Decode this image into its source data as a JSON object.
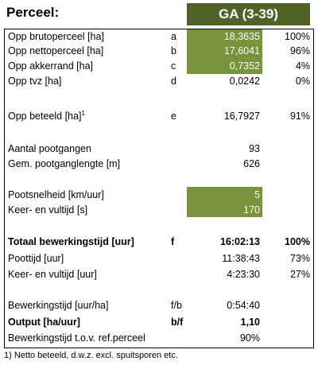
{
  "header": {
    "title": "Perceel:",
    "field": "GA (3-39)"
  },
  "rows": [
    {
      "label": "Opp brutoperceel [ha]",
      "code": "a",
      "value": "18,3635",
      "percent": "100%"
    },
    {
      "label": "Opp nettoperceel [ha]",
      "code": "b",
      "value": "17,6041",
      "percent": "96%"
    },
    {
      "label": "Opp akkerrand [ha]",
      "code": "c",
      "value": "0,7352",
      "percent": "4%"
    },
    {
      "label": "Opp tvz [ha]",
      "code": "d",
      "value": "0,0242",
      "percent": "0%"
    },
    {
      "label": "Opp beteeld [ha]",
      "sup": "1",
      "code": "e",
      "value": "16,7927",
      "percent": "91%"
    },
    {
      "label": "Aantal pootgangen",
      "value": "93"
    },
    {
      "label": "Gem. pootganglengte [m]",
      "value": "626"
    },
    {
      "label": "Pootsnelheid [km/uur]",
      "value": "5"
    },
    {
      "label": "Keer- en vultijd [s]",
      "value": "170"
    },
    {
      "label": "Totaal bewerkingstijd [uur]",
      "code": "f",
      "value": "16:02:13",
      "percent": "100%"
    },
    {
      "label": "Poottijd [uur]",
      "value": "11:38:43",
      "percent": "73%"
    },
    {
      "label": "Keer- en vultijd [uur]",
      "value": "4:23:30",
      "percent": "27%"
    },
    {
      "label": "Bewerkingstijd [uur/ha]",
      "code": "f/b",
      "value": "0:54:40"
    },
    {
      "label": "Output [ha/uur]",
      "code": "b/f",
      "value": "1,10"
    },
    {
      "label": "Bewerkingstijd t.o.v. ref.perceel",
      "value": "90%"
    }
  ],
  "footnote": "1) Netto beteeld, d.w.z. excl. spuitsporen etc."
}
